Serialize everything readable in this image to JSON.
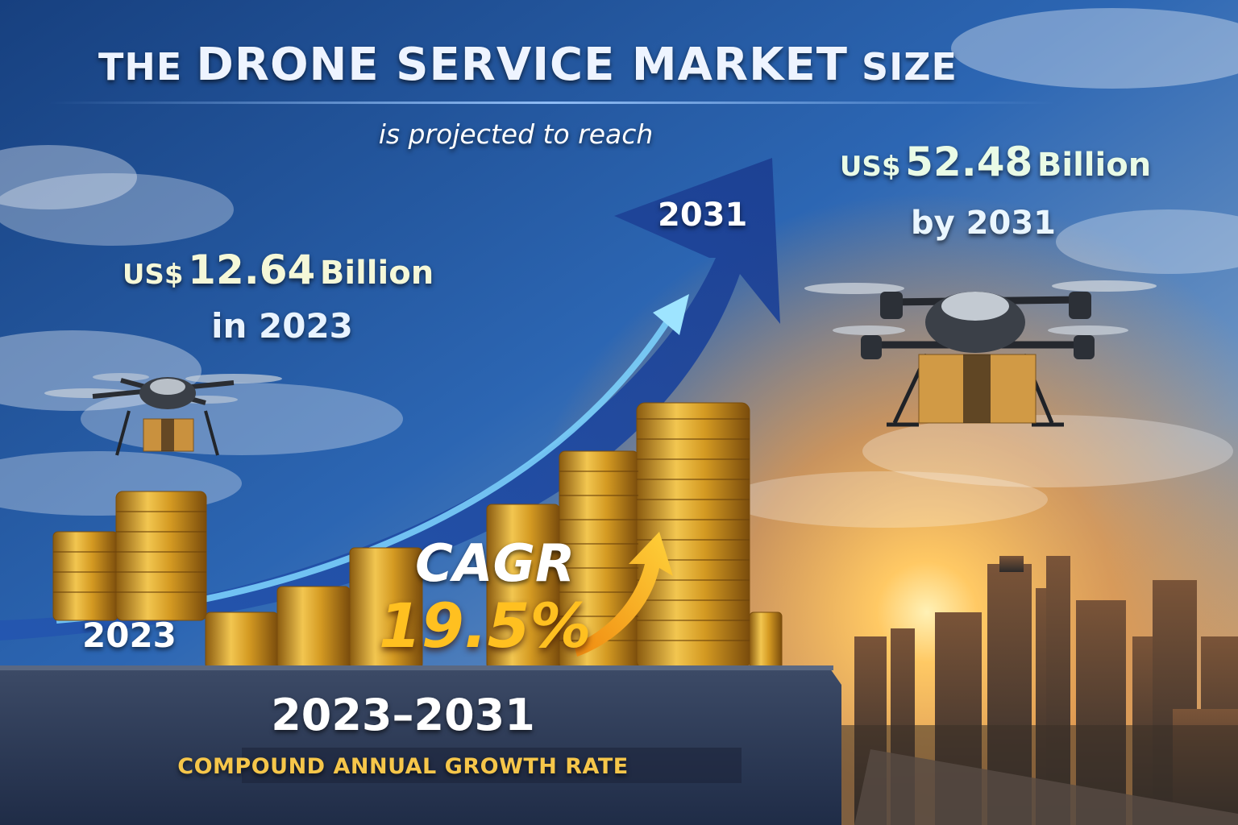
{
  "title": {
    "prefix": "THE",
    "main": "DRONE SERVICE MARKET",
    "suffix": "SIZE"
  },
  "subtitle": "is projected to reach",
  "start": {
    "currency": "US$",
    "amount": "12.64",
    "unit": "Billion",
    "year_label": "in 2023"
  },
  "end": {
    "currency": "US$",
    "amount": "52.48",
    "unit": "Billion",
    "year_label": "by 2031"
  },
  "arrow": {
    "start_year": "2023",
    "end_year": "2031"
  },
  "cagr": {
    "label": "CAGR",
    "value": "19.5%",
    "period": "2023–2031",
    "caption": "COMPOUND ANNUAL GROWTH RATE"
  },
  "colors": {
    "sky_top": "#1d4c9a",
    "sunset": "#f5a13a",
    "arrow": "#2c63c4",
    "coins": "#d8a12a",
    "accent": "#ffc020"
  },
  "icons": [
    "drone-icon",
    "package-icon",
    "growth-arrow-icon"
  ]
}
